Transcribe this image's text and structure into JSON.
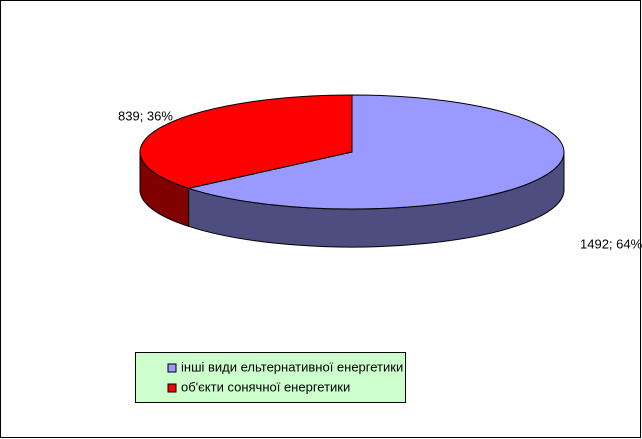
{
  "chart_data": {
    "type": "pie",
    "categories": [
      "інші види ельтернативної енергетики",
      "об'єкти сонячної енергетики"
    ],
    "values": [
      1492,
      839
    ],
    "value_labels": [
      "1492; 64%",
      "839; 36%"
    ],
    "colors": [
      "#9999ff",
      "#ff0000"
    ],
    "side_colors": [
      "#4d4d80",
      "#800000"
    ],
    "legend_color": "#ccffcc"
  }
}
